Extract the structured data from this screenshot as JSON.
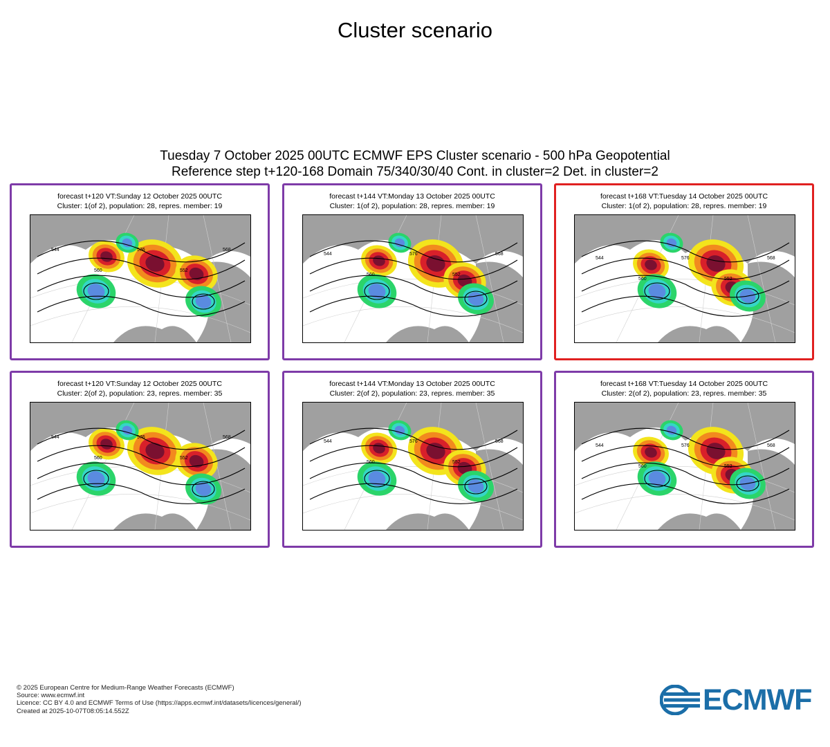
{
  "page_title": "Cluster scenario",
  "header": {
    "line1": "Tuesday 7 October 2025 00UTC ECMWF EPS Cluster scenario - 500 hPa Geopotential",
    "line2": "Reference step t+120-168 Domain 75/340/30/40 Cont. in cluster=2 Det. in cluster=2"
  },
  "panels": [
    {
      "title": "forecast t+120 VT:Sunday 12 October 2025 00UTC",
      "subtitle": "Cluster: 1(of 2), population: 28, repres. member: 19",
      "labels": [
        "544",
        "560",
        "576",
        "552",
        "568"
      ]
    },
    {
      "title": "forecast t+144 VT:Monday 13 October 2025 00UTC",
      "subtitle": "Cluster: 1(of 2), population: 28, repres. member: 19",
      "labels": [
        "544",
        "560",
        "576",
        "552",
        "568"
      ]
    },
    {
      "title": "forecast t+168 VT:Tuesday 14 October 2025 00UTC",
      "subtitle": "Cluster: 1(of 2), population: 28, repres. member: 19",
      "labels": [
        "544",
        "560",
        "576",
        "552",
        "568"
      ]
    },
    {
      "title": "forecast t+120 VT:Sunday 12 October 2025 00UTC",
      "subtitle": "Cluster: 2(of 2), population: 23, repres. member: 35",
      "labels": [
        "544",
        "560",
        "576",
        "552",
        "568"
      ]
    },
    {
      "title": "forecast t+144 VT:Monday 13 October 2025 00UTC",
      "subtitle": "Cluster: 2(of 2), population: 23, repres. member: 35",
      "labels": [
        "544",
        "560",
        "576",
        "552",
        "568"
      ]
    },
    {
      "title": "forecast t+168 VT:Tuesday 14 October 2025 00UTC",
      "subtitle": "Cluster: 2(of 2), population: 23, repres. member: 35",
      "labels": [
        "544",
        "560",
        "576",
        "552",
        "568"
      ]
    }
  ],
  "selected_panel": 2,
  "colors": {
    "frame": "#7e3ba8",
    "frame_selected": "#e02020",
    "anomaly_dark_red": "#7a1030",
    "anomaly_red": "#d8202a",
    "anomaly_orange": "#f28a1e",
    "anomaly_yellow": "#f3e41c",
    "anomaly_green": "#2bd46a",
    "anomaly_cyan": "#35d6c6",
    "anomaly_blue": "#5a8be0",
    "land": "#a0a0a0",
    "brand": "#1b6ea8"
  },
  "footer": {
    "copyright": "© 2025 European Centre for Medium-Range Weather Forecasts (ECMWF)",
    "source": "Source: www.ecmwf.int",
    "licence": "Licence: CC BY 4.0 and ECMWF Terms of Use (https://apps.ecmwf.int/datasets/licences/general/)",
    "created": "Created at 2025-10-07T08:05:14.552Z"
  },
  "logo": {
    "text": "ECMWF",
    "icon": "ecmwf-logo-icon"
  }
}
